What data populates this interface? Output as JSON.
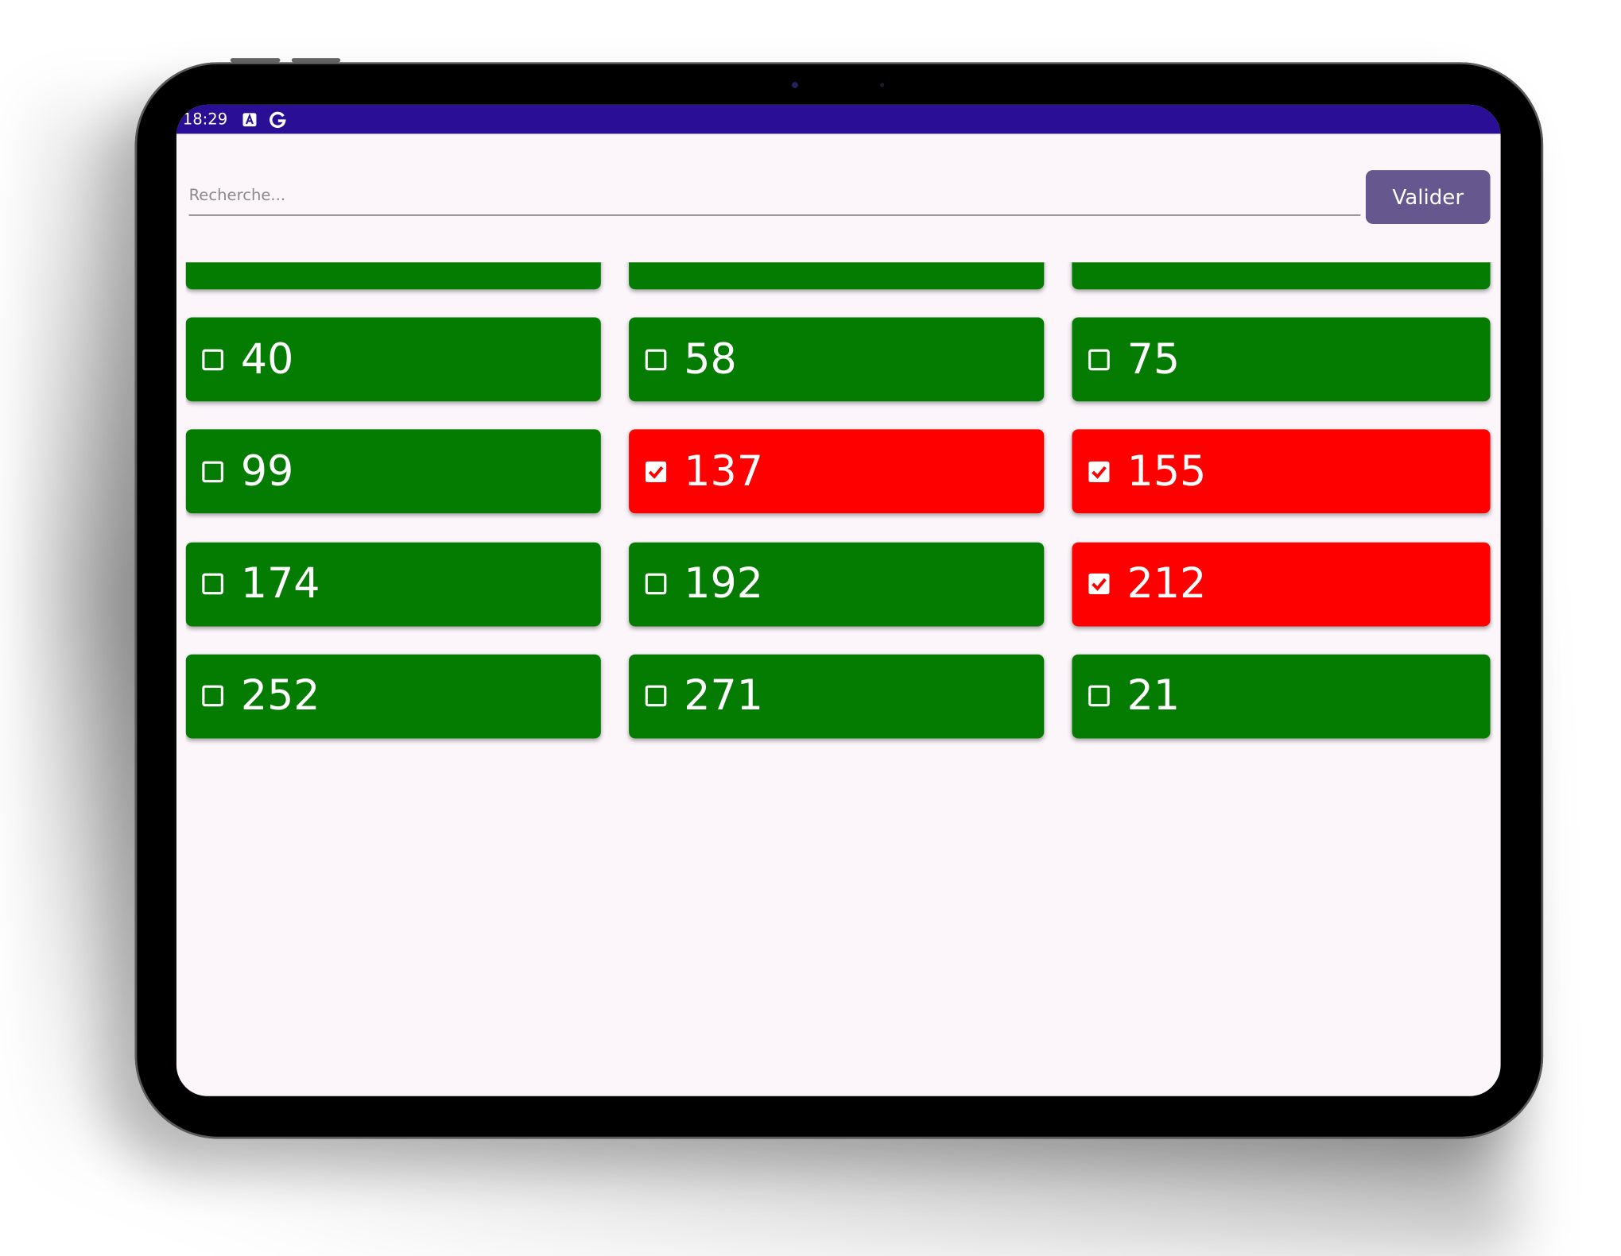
{
  "status_bar": {
    "time": "18:29"
  },
  "search": {
    "placeholder": "Recherche...",
    "button": "Valider"
  },
  "grid": {
    "columns": 3,
    "items": [
      {
        "label": "40",
        "checked": false
      },
      {
        "label": "58",
        "checked": false
      },
      {
        "label": "75",
        "checked": false
      },
      {
        "label": "99",
        "checked": false
      },
      {
        "label": "137",
        "checked": true
      },
      {
        "label": "155",
        "checked": true
      },
      {
        "label": "174",
        "checked": false
      },
      {
        "label": "192",
        "checked": false
      },
      {
        "label": "212",
        "checked": true
      },
      {
        "label": "252",
        "checked": false
      },
      {
        "label": "271",
        "checked": false
      },
      {
        "label": "21",
        "checked": false
      }
    ]
  }
}
